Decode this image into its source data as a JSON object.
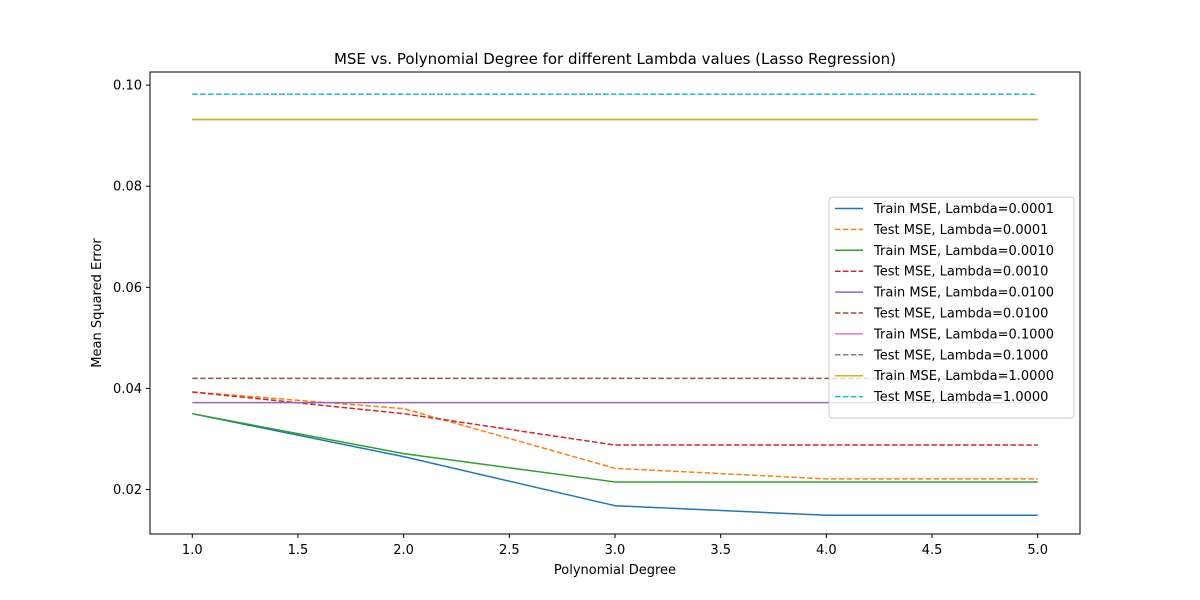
{
  "chart_data": {
    "type": "line",
    "title": "MSE vs. Polynomial Degree for different Lambda values (Lasso Regression)",
    "xlabel": "Polynomial Degree",
    "ylabel": "Mean Squared Error",
    "xlim": [
      0.8,
      5.2
    ],
    "ylim": [
      0.0112,
      0.1026
    ],
    "xticks": [
      1.0,
      1.5,
      2.0,
      2.5,
      3.0,
      3.5,
      4.0,
      4.5,
      5.0
    ],
    "xtick_labels": [
      "1.0",
      "1.5",
      "2.0",
      "2.5",
      "3.0",
      "3.5",
      "4.0",
      "4.5",
      "5.0"
    ],
    "yticks": [
      0.02,
      0.04,
      0.06,
      0.08,
      0.1
    ],
    "ytick_labels": [
      "0.02",
      "0.04",
      "0.06",
      "0.08",
      "0.10"
    ],
    "grid": false,
    "legend_position": "center-right",
    "x": [
      1,
      2,
      3,
      4,
      5
    ],
    "series": [
      {
        "name": "Train MSE, Lambda=0.0001",
        "color": "#1f77b4",
        "dash": "solid",
        "values": [
          0.035,
          0.0265,
          0.0168,
          0.0149,
          0.0149
        ]
      },
      {
        "name": "Test MSE, Lambda=0.0001",
        "color": "#ff7f0e",
        "dash": "dashed",
        "values": [
          0.0393,
          0.036,
          0.0242,
          0.0221,
          0.0221
        ]
      },
      {
        "name": "Train MSE, Lambda=0.0010",
        "color": "#2ca02c",
        "dash": "solid",
        "values": [
          0.035,
          0.0271,
          0.0215,
          0.0215,
          0.0215
        ]
      },
      {
        "name": "Test MSE, Lambda=0.0010",
        "color": "#d62728",
        "dash": "dashed",
        "values": [
          0.0393,
          0.035,
          0.0288,
          0.0288,
          0.0288
        ]
      },
      {
        "name": "Train MSE, Lambda=0.0100",
        "color": "#9467bd",
        "dash": "solid",
        "values": [
          0.0372,
          0.0372,
          0.0372,
          0.0372,
          0.0372
        ]
      },
      {
        "name": "Test MSE, Lambda=0.0100",
        "color": "#8c564b",
        "dash": "dashed",
        "values": [
          0.042,
          0.042,
          0.042,
          0.042,
          0.042
        ]
      },
      {
        "name": "Train MSE, Lambda=0.1000",
        "color": "#e377c2",
        "dash": "solid",
        "values": [
          0.0932,
          0.0932,
          0.0932,
          0.0932,
          0.0932
        ]
      },
      {
        "name": "Test MSE, Lambda=0.1000",
        "color": "#7f7f7f",
        "dash": "dashed",
        "values": [
          0.0982,
          0.0982,
          0.0982,
          0.0982,
          0.0982
        ]
      },
      {
        "name": "Train MSE, Lambda=1.0000",
        "color": "#bcbd22",
        "dash": "solid",
        "values": [
          0.0932,
          0.0932,
          0.0932,
          0.0932,
          0.0932
        ]
      },
      {
        "name": "Test MSE, Lambda=1.0000",
        "color": "#17becf",
        "dash": "dashed",
        "values": [
          0.0982,
          0.0982,
          0.0982,
          0.0982,
          0.0982
        ]
      }
    ]
  }
}
